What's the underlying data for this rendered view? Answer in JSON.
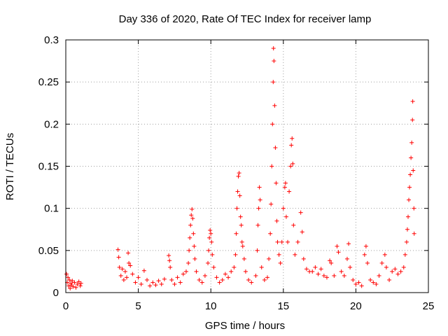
{
  "chart_data": {
    "type": "scatter",
    "title": "Day 336 of 2020, Rate Of TEC Index for receiver lamp",
    "xlabel": "GPS time / hours",
    "ylabel": "ROTI / TECUs",
    "xlim": [
      0,
      25
    ],
    "ylim": [
      0,
      0.3
    ],
    "xticks": [
      "0",
      "5",
      "10",
      "15",
      "20",
      "25"
    ],
    "yticks": [
      "0",
      "0.05",
      "0.1",
      "0.15",
      "0.2",
      "0.25",
      "0.3"
    ],
    "grid": true,
    "marker": "+",
    "series": [
      {
        "name": "ROTI",
        "color": "#ff0000",
        "points": [
          [
            0.05,
            0.022
          ],
          [
            0.1,
            0.012
          ],
          [
            0.15,
            0.018
          ],
          [
            0.2,
            0.008
          ],
          [
            0.25,
            0.015
          ],
          [
            0.3,
            0.005
          ],
          [
            0.35,
            0.011
          ],
          [
            0.4,
            0.009
          ],
          [
            0.45,
            0.014
          ],
          [
            0.5,
            0.007
          ],
          [
            0.6,
            0.012
          ],
          [
            0.7,
            0.006
          ],
          [
            0.8,
            0.01
          ],
          [
            0.9,
            0.013
          ],
          [
            1.0,
            0.008
          ],
          [
            1.05,
            0.011
          ],
          [
            3.6,
            0.051
          ],
          [
            3.65,
            0.042
          ],
          [
            3.7,
            0.03
          ],
          [
            3.8,
            0.02
          ],
          [
            3.9,
            0.028
          ],
          [
            4.0,
            0.015
          ],
          [
            4.1,
            0.025
          ],
          [
            4.2,
            0.018
          ],
          [
            4.3,
            0.047
          ],
          [
            4.35,
            0.035
          ],
          [
            4.45,
            0.032
          ],
          [
            4.6,
            0.022
          ],
          [
            4.8,
            0.012
          ],
          [
            5.0,
            0.018
          ],
          [
            5.2,
            0.01
          ],
          [
            5.4,
            0.026
          ],
          [
            5.6,
            0.015
          ],
          [
            5.8,
            0.008
          ],
          [
            6.0,
            0.012
          ],
          [
            6.2,
            0.009
          ],
          [
            6.4,
            0.014
          ],
          [
            6.6,
            0.01
          ],
          [
            6.8,
            0.016
          ],
          [
            7.1,
            0.044
          ],
          [
            7.15,
            0.038
          ],
          [
            7.2,
            0.03
          ],
          [
            7.3,
            0.015
          ],
          [
            7.5,
            0.01
          ],
          [
            7.7,
            0.018
          ],
          [
            7.9,
            0.012
          ],
          [
            8.1,
            0.022
          ],
          [
            8.3,
            0.025
          ],
          [
            8.45,
            0.035
          ],
          [
            8.5,
            0.05
          ],
          [
            8.55,
            0.065
          ],
          [
            8.6,
            0.08
          ],
          [
            8.65,
            0.092
          ],
          [
            8.7,
            0.099
          ],
          [
            8.75,
            0.088
          ],
          [
            8.8,
            0.07
          ],
          [
            8.85,
            0.055
          ],
          [
            8.9,
            0.04
          ],
          [
            9.0,
            0.025
          ],
          [
            9.2,
            0.015
          ],
          [
            9.4,
            0.012
          ],
          [
            9.6,
            0.02
          ],
          [
            9.8,
            0.035
          ],
          [
            9.85,
            0.05
          ],
          [
            9.9,
            0.065
          ],
          [
            9.95,
            0.074
          ],
          [
            10.0,
            0.07
          ],
          [
            10.05,
            0.06
          ],
          [
            10.1,
            0.045
          ],
          [
            10.2,
            0.03
          ],
          [
            10.4,
            0.018
          ],
          [
            10.6,
            0.012
          ],
          [
            10.8,
            0.015
          ],
          [
            11.0,
            0.022
          ],
          [
            11.2,
            0.018
          ],
          [
            11.4,
            0.025
          ],
          [
            11.6,
            0.03
          ],
          [
            11.7,
            0.045
          ],
          [
            11.75,
            0.07
          ],
          [
            11.8,
            0.1
          ],
          [
            11.85,
            0.12
          ],
          [
            11.9,
            0.138
          ],
          [
            11.95,
            0.142
          ],
          [
            12.0,
            0.115
          ],
          [
            12.05,
            0.09
          ],
          [
            12.1,
            0.08
          ],
          [
            12.15,
            0.06
          ],
          [
            12.2,
            0.055
          ],
          [
            12.3,
            0.04
          ],
          [
            12.4,
            0.025
          ],
          [
            12.6,
            0.015
          ],
          [
            12.8,
            0.012
          ],
          [
            13.1,
            0.02
          ],
          [
            13.2,
            0.05
          ],
          [
            13.25,
            0.08
          ],
          [
            13.3,
            0.1
          ],
          [
            13.35,
            0.125
          ],
          [
            13.4,
            0.11
          ],
          [
            13.5,
            0.03
          ],
          [
            13.7,
            0.015
          ],
          [
            13.9,
            0.018
          ],
          [
            14.0,
            0.04
          ],
          [
            14.1,
            0.07
          ],
          [
            14.15,
            0.105
          ],
          [
            14.2,
            0.15
          ],
          [
            14.25,
            0.2
          ],
          [
            14.3,
            0.25
          ],
          [
            14.32,
            0.29
          ],
          [
            14.35,
            0.275
          ],
          [
            14.4,
            0.222
          ],
          [
            14.45,
            0.172
          ],
          [
            14.5,
            0.13
          ],
          [
            14.55,
            0.085
          ],
          [
            14.6,
            0.06
          ],
          [
            14.7,
            0.045
          ],
          [
            14.8,
            0.035
          ],
          [
            14.9,
            0.06
          ],
          [
            15.0,
            0.1
          ],
          [
            15.1,
            0.125
          ],
          [
            15.15,
            0.13
          ],
          [
            15.2,
            0.09
          ],
          [
            15.3,
            0.06
          ],
          [
            15.4,
            0.12
          ],
          [
            15.5,
            0.15
          ],
          [
            15.55,
            0.175
          ],
          [
            15.6,
            0.183
          ],
          [
            15.65,
            0.153
          ],
          [
            15.7,
            0.08
          ],
          [
            15.8,
            0.045
          ],
          [
            16.0,
            0.06
          ],
          [
            16.2,
            0.095
          ],
          [
            16.3,
            0.072
          ],
          [
            16.4,
            0.04
          ],
          [
            16.6,
            0.028
          ],
          [
            16.8,
            0.025
          ],
          [
            17.0,
            0.025
          ],
          [
            17.2,
            0.03
          ],
          [
            17.4,
            0.022
          ],
          [
            17.6,
            0.028
          ],
          [
            17.8,
            0.02
          ],
          [
            18.0,
            0.018
          ],
          [
            18.2,
            0.038
          ],
          [
            18.3,
            0.035
          ],
          [
            18.5,
            0.02
          ],
          [
            18.7,
            0.055
          ],
          [
            18.8,
            0.048
          ],
          [
            19.0,
            0.025
          ],
          [
            19.2,
            0.02
          ],
          [
            19.4,
            0.04
          ],
          [
            19.5,
            0.058
          ],
          [
            19.6,
            0.03
          ],
          [
            19.8,
            0.015
          ],
          [
            20.0,
            0.01
          ],
          [
            20.2,
            0.012
          ],
          [
            20.4,
            0.008
          ],
          [
            20.6,
            0.045
          ],
          [
            20.7,
            0.055
          ],
          [
            20.8,
            0.035
          ],
          [
            21.0,
            0.015
          ],
          [
            21.2,
            0.012
          ],
          [
            21.4,
            0.01
          ],
          [
            21.6,
            0.02
          ],
          [
            21.8,
            0.035
          ],
          [
            22.0,
            0.045
          ],
          [
            22.1,
            0.03
          ],
          [
            22.3,
            0.015
          ],
          [
            22.5,
            0.025
          ],
          [
            22.7,
            0.028
          ],
          [
            22.9,
            0.022
          ],
          [
            23.1,
            0.025
          ],
          [
            23.3,
            0.03
          ],
          [
            23.4,
            0.045
          ],
          [
            23.5,
            0.06
          ],
          [
            23.55,
            0.075
          ],
          [
            23.6,
            0.09
          ],
          [
            23.65,
            0.11
          ],
          [
            23.7,
            0.125
          ],
          [
            23.75,
            0.14
          ],
          [
            23.8,
            0.16
          ],
          [
            23.85,
            0.178
          ],
          [
            23.9,
            0.205
          ],
          [
            23.92,
            0.227
          ],
          [
            23.95,
            0.145
          ],
          [
            24.0,
            0.1
          ],
          [
            24.02,
            0.07
          ]
        ]
      }
    ]
  }
}
